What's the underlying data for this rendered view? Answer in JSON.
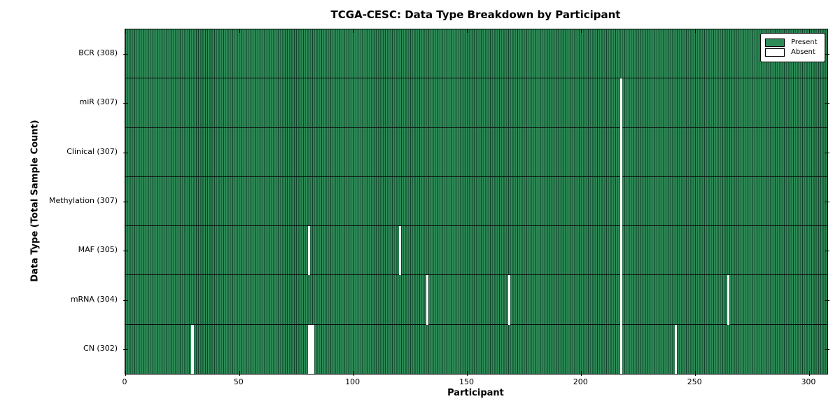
{
  "chart_data": {
    "type": "heatmap",
    "title": "TCGA-CESC: Data Type Breakdown by Participant",
    "xlabel": "Participant",
    "ylabel": "Data Type (Total Sample Count)",
    "x_ticks": [
      0,
      50,
      100,
      150,
      200,
      250,
      300
    ],
    "x_range": [
      0,
      308
    ],
    "n_participants": 308,
    "grid": false,
    "rows": [
      {
        "name": "bcr",
        "label": "BCR (308)",
        "total": 308,
        "absent_at": []
      },
      {
        "name": "mir",
        "label": "miR (307)",
        "total": 307,
        "absent_at": [
          217
        ]
      },
      {
        "name": "clinical",
        "label": "Clinical (307)",
        "total": 307,
        "absent_at": [
          217
        ]
      },
      {
        "name": "methylation",
        "label": "Methylation (307)",
        "total": 307,
        "absent_at": [
          217
        ]
      },
      {
        "name": "maf",
        "label": "MAF (305)",
        "total": 305,
        "absent_at": [
          80,
          120,
          217
        ]
      },
      {
        "name": "mrna",
        "label": "mRNA (304)",
        "total": 304,
        "absent_at": [
          132,
          168,
          217,
          264
        ]
      },
      {
        "name": "cn",
        "label": "CN (302)",
        "total": 302,
        "absent_at": [
          29,
          80,
          81,
          82,
          217,
          241
        ]
      }
    ],
    "legend": {
      "position": "upper right",
      "entries": [
        {
          "label": "Present",
          "color": "#2e8b57"
        },
        {
          "label": "Absent",
          "color": "#ffffff"
        }
      ]
    },
    "colors": {
      "present_fill": "#2e8b57",
      "present_edge": "#11402a",
      "absent_fill": "#ffffff",
      "axis": "#000000",
      "background": "#ffffff"
    }
  }
}
